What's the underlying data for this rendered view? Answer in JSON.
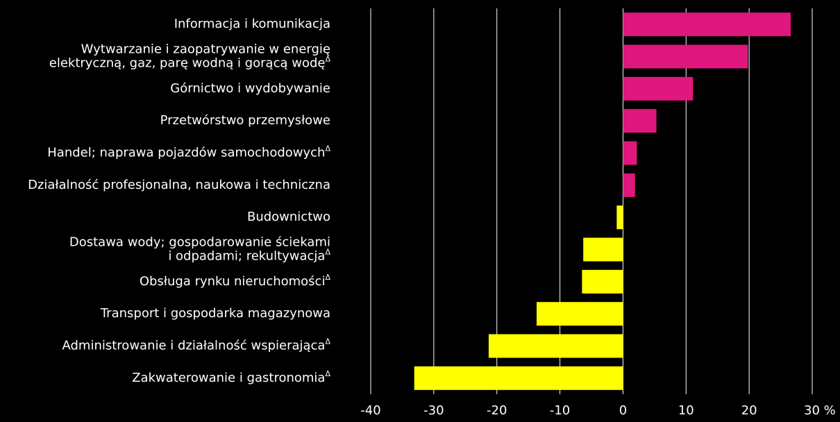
{
  "chart_data": {
    "type": "barh",
    "categories": [
      "Informacja i komunikacja",
      "Wytwarzanie i zaopatrywanie w energię\nelektryczną, gaz, parę wodną i gorącą wodęΔ",
      "Górnictwo i wydobywanie",
      "Przetwórstwo przemysłowe",
      "Handel; naprawa pojazdów samochodowychΔ",
      "Działalność profesjonalna, naukowa i techniczna",
      "Budownictwo",
      "Dostawa wody; gospodarowanie ściekami\ni odpadami; rekultywacjaΔ",
      "Obsługa rynku nieruchomościΔ",
      "Transport i gospodarka magazynowa",
      "Administrowanie i działalność wspierającaΔ",
      "Zakwaterowanie i gastronomiaΔ"
    ],
    "values": [
      26.6,
      19.8,
      11.1,
      5.3,
      2.2,
      1.9,
      -1.0,
      -6.3,
      -6.5,
      -13.7,
      -21.3,
      -33.1
    ],
    "positive_color": "#e0177d",
    "negative_color": "#ffff00",
    "xlim": [
      -40,
      30
    ],
    "xticks": [
      -40,
      -30,
      -20,
      -10,
      0,
      10,
      20,
      {
        "value": 30,
        "label": "30 %"
      }
    ],
    "grid": true
  }
}
